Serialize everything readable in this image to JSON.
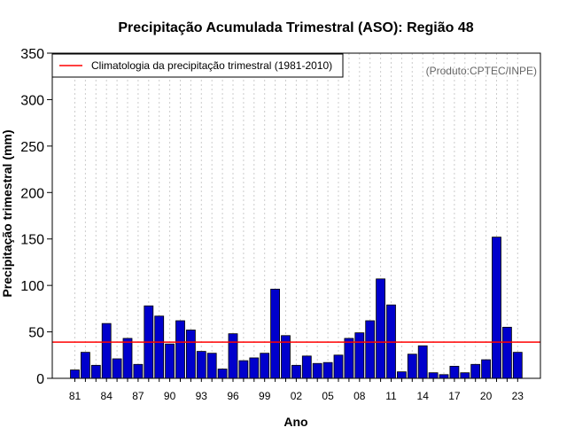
{
  "chart_data": {
    "type": "bar",
    "title": "Precipitação Acumulada Trimestral (ASO): Região 48",
    "xlabel": "Ano",
    "ylabel": "Precipitação trimestral (mm)",
    "ylim": [
      0,
      350
    ],
    "yticks": [
      0,
      50,
      100,
      150,
      200,
      250,
      300,
      350
    ],
    "xtick_labels": [
      "81",
      "84",
      "87",
      "90",
      "93",
      "96",
      "99",
      "02",
      "05",
      "08",
      "11",
      "14",
      "17",
      "20",
      "23"
    ],
    "grid": "vertical dotted per year",
    "categories": [
      "1981",
      "1982",
      "1983",
      "1984",
      "1985",
      "1986",
      "1987",
      "1988",
      "1989",
      "1990",
      "1991",
      "1992",
      "1993",
      "1994",
      "1995",
      "1996",
      "1997",
      "1998",
      "1999",
      "2000",
      "2001",
      "2002",
      "2003",
      "2004",
      "2005",
      "2006",
      "2007",
      "2008",
      "2009",
      "2010",
      "2011",
      "2012",
      "2013",
      "2014",
      "2015",
      "2016",
      "2017",
      "2018",
      "2019",
      "2020",
      "2021",
      "2022",
      "2023"
    ],
    "values": [
      9,
      28,
      14,
      59,
      21,
      43,
      15,
      78,
      67,
      37,
      62,
      52,
      29,
      27,
      10,
      48,
      19,
      22,
      27,
      96,
      46,
      14,
      24,
      16,
      17,
      25,
      43,
      49,
      62,
      107,
      79,
      7,
      26,
      35,
      6,
      4,
      13,
      6,
      15,
      20,
      152,
      55,
      28
    ],
    "climatology": 39,
    "legend": {
      "label": "Climatologia da precipitação trimestral (1981-2010)",
      "position": "top-left"
    },
    "credit": "(Produto:CPTEC/INPE)",
    "colors": {
      "bar": "#0000cc",
      "bar_edge": "#000000",
      "climatology": "#ff0000",
      "grid": "#cccccc"
    }
  }
}
